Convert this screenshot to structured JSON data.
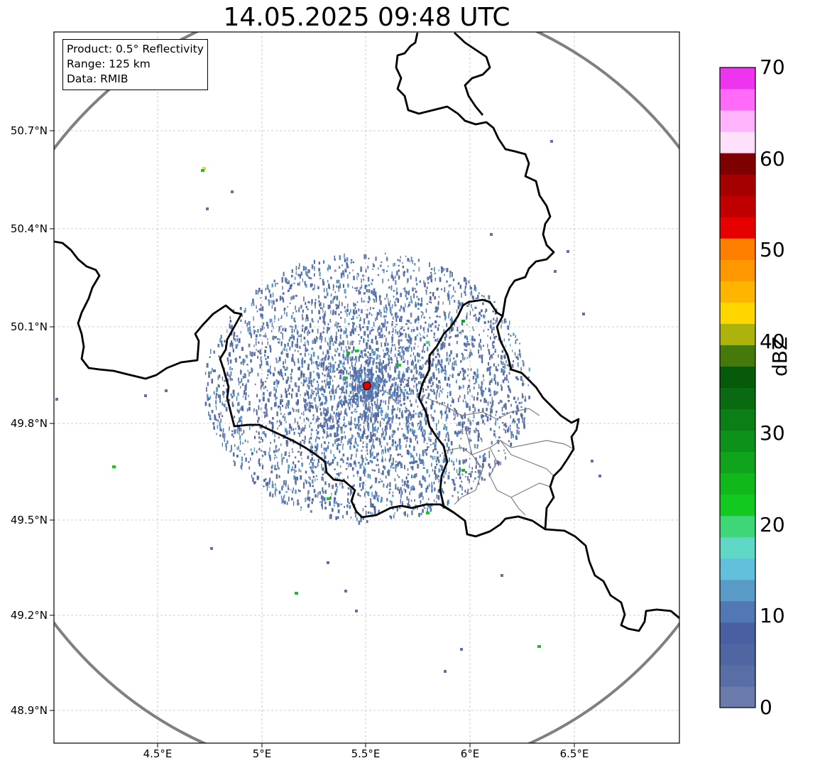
{
  "title": "14.05.2025 09:48 UTC",
  "info_box": {
    "product": "Product: 0.5° Reflectivity",
    "range": "Range: 125 km",
    "data": "Data: RMIB"
  },
  "lat_labels": [
    "50.7°N",
    "50.4°N",
    "50.1°N",
    "49.8°N",
    "49.5°N",
    "49.2°N",
    "48.9°N"
  ],
  "lon_labels": [
    "4.5°E",
    "5°E",
    "5.5°E",
    "6°E",
    "6.5°E"
  ],
  "colorbar": {
    "label": "dBZ",
    "ticks": [
      "0",
      "10",
      "20",
      "30",
      "40",
      "50",
      "60",
      "70"
    ],
    "min": 0,
    "max": 70,
    "step": 2.5,
    "colors": [
      "#6b7bab",
      "#5a6ea6",
      "#4f66a3",
      "#4a5fa1",
      "#5177b4",
      "#5a9ac7",
      "#62c0dc",
      "#5fd8c5",
      "#3fd677",
      "#12c922",
      "#10b81c",
      "#0fa41b",
      "#0c911a",
      "#0b7e16",
      "#0a6a12",
      "#065a0a",
      "#457a0a",
      "#aeb20d",
      "#ffd600",
      "#ffb400",
      "#ff9700",
      "#ff7e00",
      "#e60000",
      "#c00000",
      "#a40000",
      "#7e0000",
      "#ffe0fb",
      "#ffb3fa",
      "#ff6bf8",
      "#ee34ee"
    ]
  },
  "colors": {
    "range_ring": "#808080",
    "borders": "#000000",
    "subborders": "#808080",
    "radar_site": "#e00000",
    "echo_base": "#5b73a8"
  }
}
